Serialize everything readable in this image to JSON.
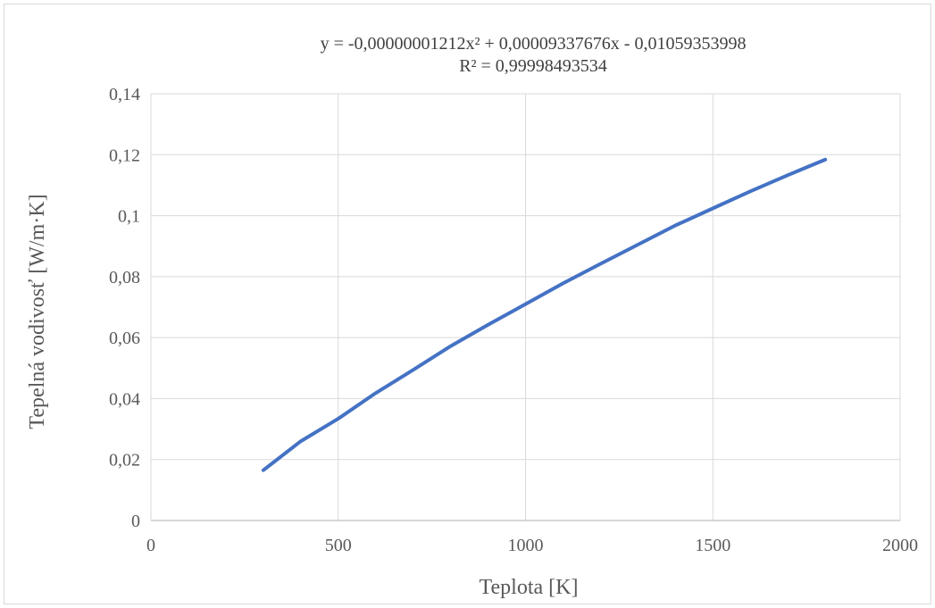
{
  "chart_data": {
    "type": "line",
    "title": "",
    "trendline_equation": "y = -0,00000001212x² + 0,00009337676x - 0,01059353998",
    "trendline_r2": "R² = 0,99998493534",
    "xlabel": "Teplota [K]",
    "ylabel": "Tepelná vodivosť [W/m·K]",
    "xlim": [
      0,
      2000
    ],
    "ylim": [
      0,
      0.14
    ],
    "x_ticks": [
      0,
      500,
      1000,
      1500,
      2000
    ],
    "x_tick_labels": [
      "0",
      "500",
      "1000",
      "1500",
      "2000"
    ],
    "y_ticks": [
      0,
      0.02,
      0.04,
      0.06,
      0.08,
      0.1,
      0.12,
      0.14
    ],
    "y_tick_labels": [
      "0",
      "0,02",
      "0,04",
      "0,06",
      "0,08",
      "0,1",
      "0,12",
      "0,14"
    ],
    "grid": true,
    "legend": "none",
    "series": [
      {
        "color": "#4472c4",
        "x": [
          300,
          400,
          500,
          600,
          700,
          800,
          900,
          1000,
          1100,
          1200,
          1300,
          1400,
          1500,
          1600,
          1700,
          1800
        ],
        "y": [
          0.0165,
          0.026,
          0.0334,
          0.0418,
          0.0494,
          0.0572,
          0.0642,
          0.071,
          0.0778,
          0.0842,
          0.0905,
          0.0968,
          0.1024,
          0.108,
          0.1133,
          0.1184
        ]
      }
    ]
  }
}
